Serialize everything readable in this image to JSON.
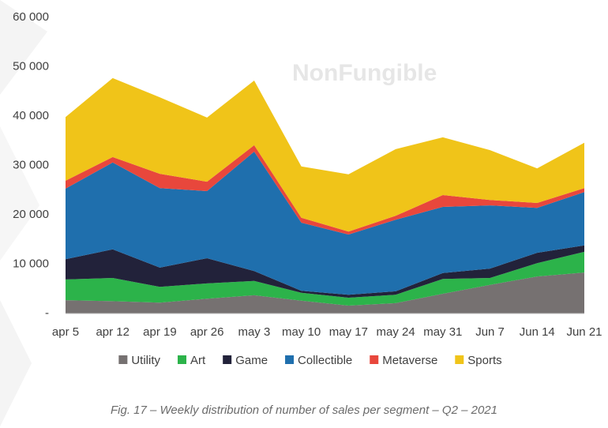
{
  "chart_data": {
    "type": "stacked-area",
    "caption": "Fig. 17 – Weekly distribution of number of sales per segment – Q2 – 2021",
    "watermark": "NonFungible",
    "categories": [
      "apr 5",
      "apr 12",
      "apr 19",
      "apr 26",
      "may 3",
      "may 10",
      "may 17",
      "may 24",
      "may 31",
      "Jun 7",
      "Jun 14",
      "Jun 21"
    ],
    "series": [
      {
        "name": "Utility",
        "color": "#767171",
        "values": [
          2700,
          2500,
          2200,
          3000,
          3700,
          2600,
          1600,
          2100,
          4000,
          5800,
          7500,
          8300
        ]
      },
      {
        "name": "Art",
        "color": "#2cb34a",
        "values": [
          4200,
          4700,
          3200,
          3100,
          2900,
          1600,
          1600,
          1700,
          3000,
          1400,
          2700,
          4200
        ]
      },
      {
        "name": "Game",
        "color": "#22223a",
        "values": [
          4100,
          5800,
          3900,
          5100,
          2000,
          400,
          600,
          700,
          1200,
          1900,
          2100,
          1300
        ]
      },
      {
        "name": "Collectible",
        "color": "#1f6fad",
        "values": [
          14300,
          17600,
          16100,
          13600,
          24200,
          13800,
          12200,
          14500,
          13400,
          12800,
          9100,
          10800
        ]
      },
      {
        "name": "Metaverse",
        "color": "#e8473c",
        "values": [
          1600,
          1100,
          2900,
          1900,
          1300,
          1000,
          600,
          800,
          2400,
          1100,
          1000,
          800
        ]
      },
      {
        "name": "Sports",
        "color": "#f0c419",
        "values": [
          12900,
          16000,
          15500,
          13000,
          13100,
          10400,
          11600,
          13500,
          11700,
          10100,
          7000,
          9200
        ]
      }
    ],
    "ylim": [
      0,
      60000
    ],
    "yticks": [
      {
        "value": 0,
        "label": "-"
      },
      {
        "value": 10000,
        "label": "10 000"
      },
      {
        "value": 20000,
        "label": "20 000"
      },
      {
        "value": 30000,
        "label": "30 000"
      },
      {
        "value": 40000,
        "label": "40 000"
      },
      {
        "value": 50000,
        "label": "50 000"
      },
      {
        "value": 60000,
        "label": "60 000"
      }
    ],
    "legend": "bottom"
  }
}
